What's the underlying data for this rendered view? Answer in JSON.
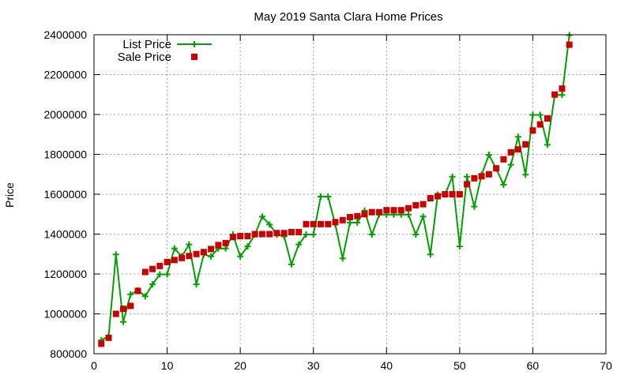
{
  "chart_data": {
    "type": "line",
    "title": "May 2019 Santa Clara Home Prices",
    "xlabel": "",
    "ylabel": "Price",
    "xlim": [
      0,
      70
    ],
    "ylim": [
      800000,
      2400000
    ],
    "x_ticks": [
      0,
      10,
      20,
      30,
      40,
      50,
      60,
      70
    ],
    "y_ticks": [
      800000,
      1000000,
      1200000,
      1400000,
      1600000,
      1800000,
      2000000,
      2200000,
      2400000
    ],
    "grid": true,
    "legend_position": "top-left",
    "colors": {
      "list_price": "#00a000",
      "sale_price": "#cc0000"
    },
    "series": [
      {
        "name": "List Price",
        "style": "line-plus",
        "x": [
          1,
          2,
          3,
          4,
          5,
          6,
          7,
          8,
          9,
          10,
          11,
          12,
          13,
          14,
          15,
          16,
          17,
          18,
          19,
          20,
          21,
          22,
          23,
          24,
          25,
          26,
          27,
          28,
          29,
          30,
          31,
          32,
          33,
          34,
          35,
          36,
          37,
          38,
          39,
          40,
          41,
          42,
          43,
          44,
          45,
          46,
          47,
          48,
          49,
          50,
          51,
          52,
          53,
          54,
          55,
          56,
          57,
          58,
          59,
          60,
          61,
          62,
          63,
          64,
          65
        ],
        "values": [
          868000,
          888000,
          1298000,
          960000,
          1098000,
          1118000,
          1088000,
          1148000,
          1198000,
          1198000,
          1328000,
          1288000,
          1348000,
          1148000,
          1298000,
          1288000,
          1328000,
          1328000,
          1398000,
          1288000,
          1338000,
          1398000,
          1488000,
          1448000,
          1398000,
          1388000,
          1248000,
          1348000,
          1398000,
          1398000,
          1588000,
          1588000,
          1448000,
          1278000,
          1458000,
          1458000,
          1518000,
          1398000,
          1498000,
          1498000,
          1498000,
          1498000,
          1498000,
          1398000,
          1488000,
          1298000,
          1598000,
          1598000,
          1688000,
          1338000,
          1688000,
          1538000,
          1698000,
          1798000,
          1728000,
          1648000,
          1748000,
          1888000,
          1698000,
          1998000,
          1998000,
          1848000,
          2098000,
          2098000,
          2398000
        ]
      },
      {
        "name": "Sale Price",
        "style": "square-markers",
        "x": [
          1,
          2,
          3,
          4,
          5,
          6,
          7,
          8,
          9,
          10,
          11,
          12,
          13,
          14,
          15,
          16,
          17,
          18,
          19,
          20,
          21,
          22,
          23,
          24,
          25,
          26,
          27,
          28,
          29,
          30,
          31,
          32,
          33,
          34,
          35,
          36,
          37,
          38,
          39,
          40,
          41,
          42,
          43,
          44,
          45,
          46,
          47,
          48,
          49,
          50,
          51,
          52,
          53,
          54,
          55,
          56,
          57,
          58,
          59,
          60,
          61,
          62,
          63,
          64,
          65
        ],
        "values": [
          850000,
          880000,
          1000000,
          1025000,
          1040000,
          1115000,
          1210000,
          1225000,
          1240000,
          1260000,
          1270000,
          1280000,
          1290000,
          1300000,
          1310000,
          1325000,
          1345000,
          1355000,
          1385000,
          1390000,
          1390000,
          1400000,
          1400000,
          1400000,
          1405000,
          1405000,
          1410000,
          1410000,
          1450000,
          1450000,
          1450000,
          1450000,
          1460000,
          1470000,
          1485000,
          1490000,
          1500000,
          1510000,
          1510000,
          1520000,
          1520000,
          1520000,
          1530000,
          1545000,
          1550000,
          1580000,
          1590000,
          1600000,
          1600000,
          1600000,
          1650000,
          1680000,
          1690000,
          1700000,
          1730000,
          1775000,
          1810000,
          1825000,
          1850000,
          1920000,
          1950000,
          1980000,
          2100000,
          2130000,
          2350000
        ]
      }
    ]
  }
}
